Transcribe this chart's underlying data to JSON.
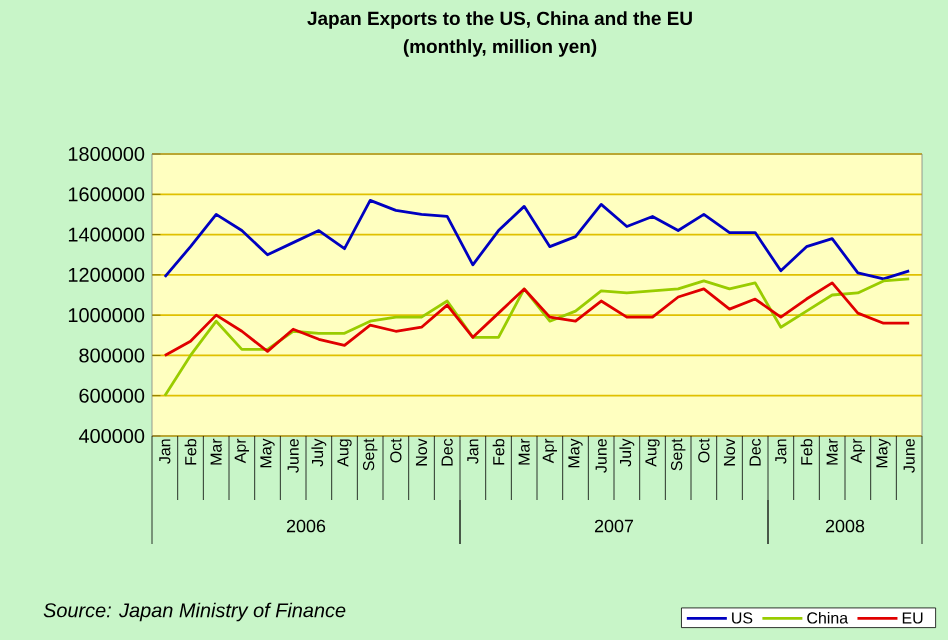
{
  "chart_data": {
    "type": "line",
    "title": "Japan   Exports to the US, China and the EU",
    "subtitle": "(monthly, million yen)",
    "categories": [
      "Jan",
      "Feb",
      "Mar",
      "Apr",
      "May",
      "June",
      "July",
      "Aug",
      "Sept",
      "Oct",
      "Nov",
      "Dec",
      "Jan",
      "Feb",
      "Mar",
      "Apr",
      "May",
      "June",
      "July",
      "Aug",
      "Sept",
      "Oct",
      "Nov",
      "Dec",
      "Jan",
      "Feb",
      "Mar",
      "Apr",
      "May",
      "June"
    ],
    "series": [
      {
        "name": "US",
        "color": "#0000c0",
        "values": [
          1190000,
          1340000,
          1500000,
          1420000,
          1300000,
          1360000,
          1420000,
          1330000,
          1570000,
          1520000,
          1500000,
          1490000,
          1250000,
          1420000,
          1540000,
          1340000,
          1390000,
          1550000,
          1440000,
          1490000,
          1420000,
          1500000,
          1410000,
          1410000,
          1220000,
          1340000,
          1380000,
          1210000,
          1180000,
          1220000
        ]
      },
      {
        "name": "China",
        "color": "#99cc00",
        "values": [
          600000,
          800000,
          970000,
          830000,
          830000,
          920000,
          910000,
          910000,
          970000,
          990000,
          990000,
          1070000,
          890000,
          890000,
          1130000,
          970000,
          1020000,
          1120000,
          1110000,
          1120000,
          1130000,
          1170000,
          1130000,
          1160000,
          940000,
          1020000,
          1100000,
          1110000,
          1170000,
          1180000
        ]
      },
      {
        "name": "EU",
        "color": "#e00000",
        "values": [
          800000,
          870000,
          1000000,
          920000,
          820000,
          930000,
          880000,
          850000,
          950000,
          920000,
          940000,
          1050000,
          890000,
          1010000,
          1130000,
          990000,
          970000,
          1070000,
          990000,
          990000,
          1090000,
          1130000,
          1030000,
          1080000,
          990000,
          1080000,
          1160000,
          1010000,
          960000,
          960000
        ]
      }
    ],
    "ylim": [
      400000,
      1800000
    ],
    "yticks": [
      400000,
      600000,
      800000,
      1000000,
      1200000,
      1400000,
      1600000,
      1800000
    ],
    "grid": "y",
    "legend": "bottom right",
    "line_style": "solid",
    "marker": "none",
    "annotations": [
      "2006",
      "2007",
      "2008",
      "Source: Japan Ministry of Finance"
    ]
  }
}
